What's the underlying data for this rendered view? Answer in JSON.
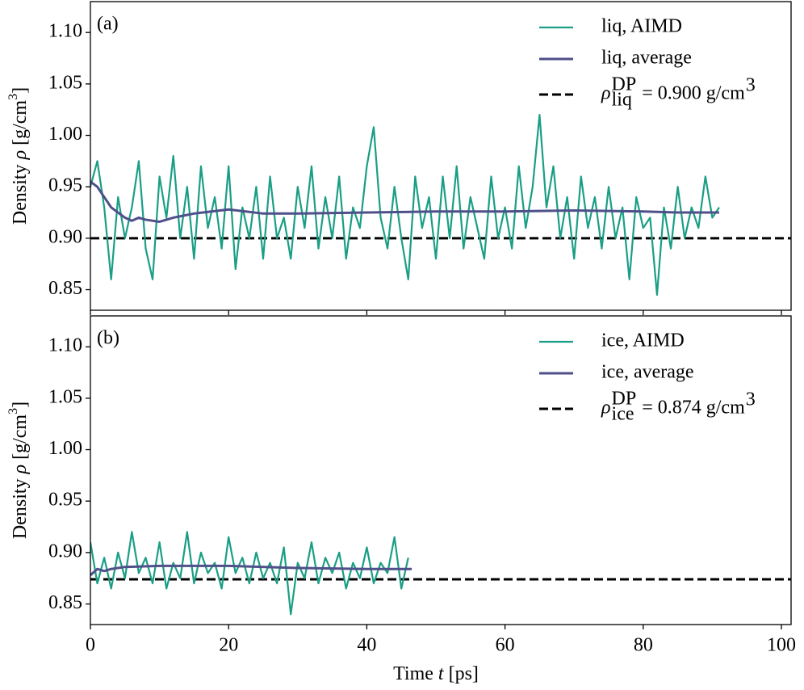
{
  "chart_data": [
    {
      "type": "line",
      "label": "(a)",
      "legend": "upper right",
      "xlim": [
        0,
        101.4
      ],
      "xticks": [
        0,
        20,
        40,
        60,
        80,
        100
      ],
      "show_xtick_labels": false,
      "ylim": [
        0.83,
        1.13
      ],
      "yticks": [
        0.85,
        {
          "value": 0.9,
          "label": "0.90"
        },
        0.95,
        {
          "value": 1.0,
          "label": "1.00"
        },
        1.05,
        {
          "value": 1.1,
          "label": "1.10"
        }
      ],
      "ylabel": [
        "Density ",
        "ρ",
        " [g/cm",
        "3",
        "]"
      ],
      "series": [
        {
          "name": "liq, AIMD",
          "color": "#1a9e85",
          "x": [
            0,
            1,
            2,
            3,
            4,
            5,
            6,
            7,
            8,
            9,
            10,
            11,
            12,
            13,
            14,
            15,
            16,
            17,
            18,
            19,
            20,
            21,
            22,
            23,
            24,
            25,
            26,
            27,
            28,
            29,
            30,
            31,
            32,
            33,
            34,
            35,
            36,
            37,
            38,
            39,
            40,
            41,
            42,
            43,
            44,
            45,
            46,
            47,
            48,
            49,
            50,
            51,
            52,
            53,
            54,
            55,
            56,
            57,
            58,
            59,
            60,
            61,
            62,
            63,
            64,
            65,
            66,
            67,
            68,
            69,
            70,
            71,
            72,
            73,
            74,
            75,
            76,
            77,
            78,
            79,
            80,
            81,
            82,
            83,
            84,
            85,
            86,
            87,
            88,
            89,
            90,
            91
          ],
          "values": [
            0.95,
            0.975,
            0.93,
            0.86,
            0.94,
            0.9,
            0.93,
            0.975,
            0.89,
            0.86,
            0.96,
            0.92,
            0.98,
            0.9,
            0.95,
            0.88,
            0.97,
            0.91,
            0.94,
            0.89,
            0.97,
            0.87,
            0.93,
            0.9,
            0.95,
            0.88,
            0.96,
            0.9,
            0.92,
            0.88,
            0.95,
            0.91,
            0.97,
            0.89,
            0.94,
            0.9,
            0.96,
            0.88,
            0.93,
            0.91,
            0.97,
            1.008,
            0.92,
            0.89,
            0.95,
            0.9,
            0.86,
            0.96,
            0.91,
            0.94,
            0.88,
            0.96,
            0.9,
            0.97,
            0.89,
            0.94,
            0.91,
            0.88,
            0.96,
            0.9,
            0.93,
            0.89,
            0.97,
            0.91,
            0.95,
            1.02,
            0.93,
            0.97,
            0.9,
            0.94,
            0.88,
            0.96,
            0.91,
            0.94,
            0.89,
            0.95,
            0.9,
            0.93,
            0.86,
            0.94,
            0.91,
            0.92,
            0.845,
            0.93,
            0.89,
            0.95,
            0.9,
            0.93,
            0.91,
            0.96,
            0.92,
            0.93
          ]
        },
        {
          "name": "liq, average",
          "color": "#4f4f8a",
          "x": [
            0,
            1,
            2,
            3,
            4,
            5,
            6,
            7,
            8,
            10,
            12,
            15,
            20,
            25,
            30,
            40,
            50,
            60,
            70,
            80,
            85,
            91
          ],
          "values": [
            0.955,
            0.95,
            0.94,
            0.93,
            0.925,
            0.92,
            0.917,
            0.92,
            0.918,
            0.916,
            0.92,
            0.924,
            0.928,
            0.924,
            0.924,
            0.925,
            0.926,
            0.926,
            0.927,
            0.926,
            0.925,
            0.925
          ]
        }
      ],
      "hline": {
        "value": 0.9,
        "color": "#000000",
        "label": {
          "symbol": "ρ",
          "sub": "liq",
          "sup": "DP",
          "text": " = 0.900 g/cm",
          "unit_sup": "3"
        }
      }
    },
    {
      "type": "line",
      "label": "(b)",
      "legend": "upper right",
      "xlim": [
        0,
        101.4
      ],
      "xticks": [
        0,
        20,
        40,
        60,
        80,
        100
      ],
      "show_xtick_labels": true,
      "xlabel": [
        "Time ",
        "t",
        " [ps]"
      ],
      "ylim": [
        0.83,
        1.13
      ],
      "yticks": [
        0.85,
        {
          "value": 0.9,
          "label": "0.90"
        },
        0.95,
        {
          "value": 1.0,
          "label": "1.00"
        },
        1.05,
        {
          "value": 1.1,
          "label": "1.10"
        }
      ],
      "ylabel": [
        "Density ",
        "ρ",
        " [g/cm",
        "3",
        "]"
      ],
      "series": [
        {
          "name": "ice, AIMD",
          "color": "#1a9e85",
          "x": [
            0,
            1,
            2,
            3,
            4,
            5,
            6,
            7,
            8,
            9,
            10,
            11,
            12,
            13,
            14,
            15,
            16,
            17,
            18,
            19,
            20,
            21,
            22,
            23,
            24,
            25,
            26,
            27,
            28,
            29,
            30,
            31,
            32,
            33,
            34,
            35,
            36,
            37,
            38,
            39,
            40,
            41,
            42,
            43,
            44,
            45,
            46
          ],
          "values": [
            0.91,
            0.87,
            0.895,
            0.865,
            0.9,
            0.875,
            0.92,
            0.88,
            0.895,
            0.87,
            0.91,
            0.865,
            0.89,
            0.875,
            0.92,
            0.87,
            0.9,
            0.88,
            0.89,
            0.865,
            0.915,
            0.88,
            0.895,
            0.87,
            0.9,
            0.875,
            0.89,
            0.87,
            0.905,
            0.84,
            0.89,
            0.875,
            0.91,
            0.87,
            0.895,
            0.88,
            0.9,
            0.865,
            0.89,
            0.875,
            0.905,
            0.87,
            0.89,
            0.88,
            0.915,
            0.865,
            0.895
          ]
        },
        {
          "name": "ice, average",
          "color": "#4f4f8a",
          "x": [
            0,
            1,
            2,
            3,
            5,
            10,
            20,
            30,
            40,
            46.5
          ],
          "values": [
            0.878,
            0.884,
            0.882,
            0.884,
            0.886,
            0.887,
            0.887,
            0.885,
            0.884,
            0.884
          ]
        }
      ],
      "hline": {
        "value": 0.874,
        "color": "#000000",
        "label": {
          "symbol": "ρ",
          "sub": "ice",
          "sup": "DP",
          "text": " = 0.874 g/cm",
          "unit_sup": "3"
        }
      }
    }
  ]
}
